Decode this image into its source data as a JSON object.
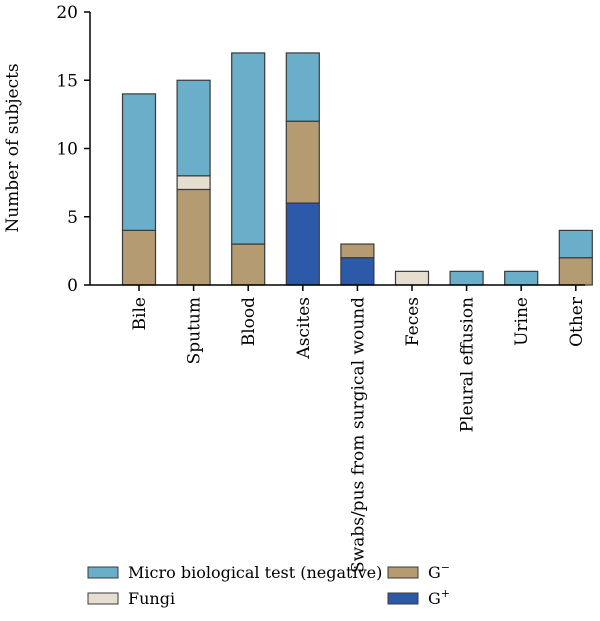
{
  "chart_data": {
    "type": "bar",
    "stacked": true,
    "categories": [
      "Bile",
      "Sputum",
      "Blood",
      "Ascites",
      "Swabs/pus from surgical wound",
      "Feces",
      "Pleural effusion",
      "Urine",
      "Other"
    ],
    "series": [
      {
        "key": "gplus",
        "name": "G",
        "superscript": "+",
        "color": "#2d5aa8",
        "values": [
          0,
          0,
          0,
          6,
          2,
          0,
          0,
          0,
          0
        ]
      },
      {
        "key": "gminus",
        "name": "G",
        "superscript": "−",
        "color": "#b59b72",
        "values": [
          4,
          7,
          3,
          6,
          1,
          0,
          0,
          0,
          2
        ]
      },
      {
        "key": "fungi",
        "name": "Fungi",
        "color": "#e6ded0",
        "values": [
          0,
          1,
          0,
          0,
          0,
          1,
          0,
          0,
          0
        ]
      },
      {
        "key": "micro",
        "name": "Micro biological test (negative)",
        "color": "#6aaec9",
        "values": [
          10,
          7,
          14,
          5,
          0,
          0,
          1,
          1,
          2
        ]
      }
    ],
    "ylabel": "Number of subjects",
    "ylim": [
      0,
      20
    ],
    "yticks": [
      0,
      5,
      10,
      15,
      20
    ],
    "grid": false,
    "legend_position": "bottom"
  }
}
